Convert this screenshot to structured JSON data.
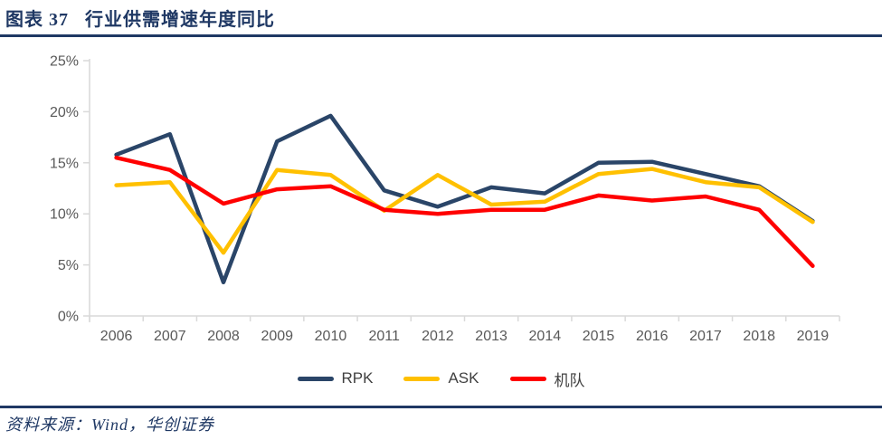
{
  "header": {
    "figure_label": "图表 37",
    "title": "行业供需增速年度同比"
  },
  "footer": {
    "source": "资料来源：Wind，华创证券"
  },
  "colors": {
    "accent_navy": "#1f3864",
    "axis_text": "#595959",
    "axis_line": "#d9d9d9",
    "legend_text": "#404040",
    "background": "#ffffff"
  },
  "chart_data": {
    "type": "line",
    "title": "行业供需增速年度同比",
    "categories": [
      "2006",
      "2007",
      "2008",
      "2009",
      "2010",
      "2011",
      "2012",
      "2013",
      "2014",
      "2015",
      "2016",
      "2017",
      "2018",
      "2019"
    ],
    "series": [
      {
        "name": "RPK",
        "color": "#2a4568",
        "values": [
          15.8,
          17.8,
          3.3,
          17.1,
          19.6,
          12.3,
          10.7,
          12.6,
          12.0,
          15.0,
          15.1,
          13.9,
          12.7,
          9.3
        ]
      },
      {
        "name": "ASK",
        "color": "#ffc000",
        "values": [
          12.8,
          13.1,
          6.2,
          14.3,
          13.8,
          10.3,
          13.8,
          10.9,
          11.2,
          13.9,
          14.4,
          13.1,
          12.6,
          9.2
        ]
      },
      {
        "name": "机队",
        "color": "#ff0000",
        "values": [
          15.5,
          14.3,
          11.0,
          12.4,
          12.7,
          10.4,
          10.0,
          10.4,
          10.4,
          11.8,
          11.3,
          11.7,
          10.4,
          4.9
        ]
      }
    ],
    "ylim": [
      0,
      25
    ],
    "ytick_step": 5,
    "ytick_labels": [
      "0%",
      "5%",
      "10%",
      "15%",
      "20%",
      "25%"
    ],
    "grid": false,
    "legend_position": "bottom"
  }
}
